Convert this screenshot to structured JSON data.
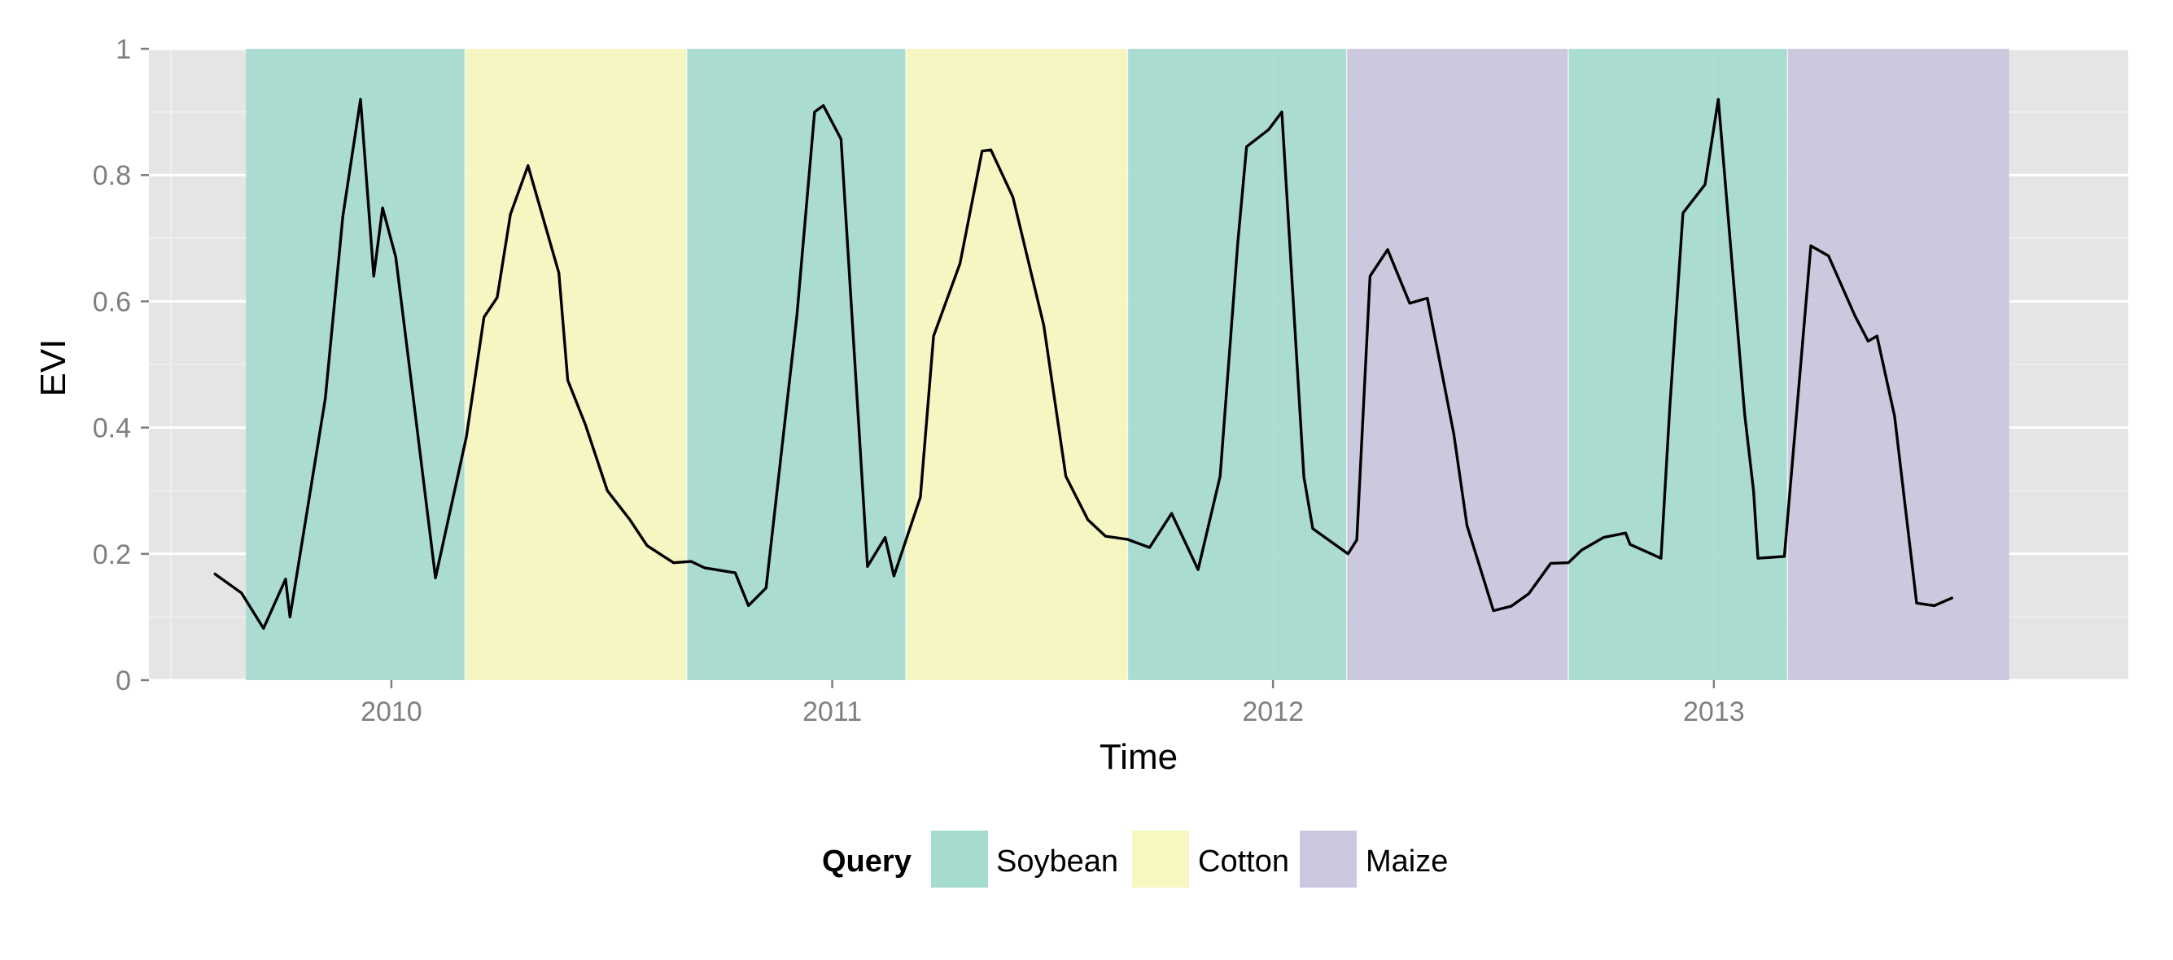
{
  "chart_data": {
    "type": "line",
    "title": "",
    "xlabel": "Time",
    "ylabel": "EVI",
    "xlim": [
      2009.45,
      2013.94
    ],
    "ylim": [
      0,
      1
    ],
    "x_ticks": [
      2010,
      2011,
      2012,
      2013
    ],
    "x_tick_labels": [
      "2010",
      "2011",
      "2012",
      "2013"
    ],
    "y_ticks": [
      0,
      0.2,
      0.4,
      0.6,
      0.8,
      1
    ],
    "y_tick_labels": [
      "0",
      "0.2",
      "0.4",
      "0.6",
      "0.8",
      "1"
    ],
    "grid": true,
    "legend": {
      "title": "Query",
      "position": "bottom",
      "entries": [
        {
          "label": "Soybean",
          "color": "#a6dbd0"
        },
        {
          "label": "Cotton",
          "color": "#f7f7c1"
        },
        {
          "label": "Maize",
          "color": "#cac7df"
        }
      ]
    },
    "shaded_regions": [
      {
        "query": "Soybean",
        "start": 2009.67,
        "end": 2010.167
      },
      {
        "query": "Cotton",
        "start": 2010.167,
        "end": 2010.67
      },
      {
        "query": "Soybean",
        "start": 2010.67,
        "end": 2011.167
      },
      {
        "query": "Cotton",
        "start": 2011.167,
        "end": 2011.67
      },
      {
        "query": "Soybean",
        "start": 2011.67,
        "end": 2012.167
      },
      {
        "query": "Maize",
        "start": 2012.167,
        "end": 2012.67
      },
      {
        "query": "Soybean",
        "start": 2012.67,
        "end": 2013.167
      },
      {
        "query": "Maize",
        "start": 2013.167,
        "end": 2013.67
      }
    ],
    "series": [
      {
        "color": "#000000",
        "points": [
          [
            2009.6,
            0.168
          ],
          [
            2009.66,
            0.138
          ],
          [
            2009.71,
            0.082
          ],
          [
            2009.76,
            0.16
          ],
          [
            2009.77,
            0.1
          ],
          [
            2009.85,
            0.446
          ],
          [
            2009.89,
            0.735
          ],
          [
            2009.93,
            0.92
          ],
          [
            2009.96,
            0.64
          ],
          [
            2009.98,
            0.748
          ],
          [
            2010.01,
            0.67
          ],
          [
            2010.05,
            0.445
          ],
          [
            2010.1,
            0.162
          ],
          [
            2010.17,
            0.385
          ],
          [
            2010.21,
            0.575
          ],
          [
            2010.24,
            0.606
          ],
          [
            2010.27,
            0.738
          ],
          [
            2010.31,
            0.815
          ],
          [
            2010.38,
            0.645
          ],
          [
            2010.4,
            0.475
          ],
          [
            2010.44,
            0.405
          ],
          [
            2010.49,
            0.3
          ],
          [
            2010.54,
            0.255
          ],
          [
            2010.58,
            0.213
          ],
          [
            2010.64,
            0.186
          ],
          [
            2010.68,
            0.188
          ],
          [
            2010.71,
            0.178
          ],
          [
            2010.78,
            0.17
          ],
          [
            2010.81,
            0.118
          ],
          [
            2010.85,
            0.146
          ],
          [
            2010.92,
            0.578
          ],
          [
            2010.96,
            0.9
          ],
          [
            2010.98,
            0.91
          ],
          [
            2011.02,
            0.857
          ],
          [
            2011.08,
            0.18
          ],
          [
            2011.12,
            0.226
          ],
          [
            2011.14,
            0.165
          ],
          [
            2011.2,
            0.29
          ],
          [
            2011.23,
            0.545
          ],
          [
            2011.29,
            0.66
          ],
          [
            2011.34,
            0.838
          ],
          [
            2011.36,
            0.84
          ],
          [
            2011.41,
            0.765
          ],
          [
            2011.48,
            0.562
          ],
          [
            2011.53,
            0.323
          ],
          [
            2011.58,
            0.254
          ],
          [
            2011.62,
            0.228
          ],
          [
            2011.67,
            0.223
          ],
          [
            2011.72,
            0.21
          ],
          [
            2011.77,
            0.264
          ],
          [
            2011.83,
            0.175
          ],
          [
            2011.88,
            0.323
          ],
          [
            2011.92,
            0.693
          ],
          [
            2011.94,
            0.845
          ],
          [
            2011.99,
            0.872
          ],
          [
            2012.02,
            0.9
          ],
          [
            2012.07,
            0.322
          ],
          [
            2012.09,
            0.24
          ],
          [
            2012.17,
            0.2
          ],
          [
            2012.19,
            0.222
          ],
          [
            2012.22,
            0.64
          ],
          [
            2012.26,
            0.682
          ],
          [
            2012.31,
            0.597
          ],
          [
            2012.35,
            0.605
          ],
          [
            2012.41,
            0.39
          ],
          [
            2012.44,
            0.245
          ],
          [
            2012.5,
            0.11
          ],
          [
            2012.54,
            0.117
          ],
          [
            2012.58,
            0.137
          ],
          [
            2012.63,
            0.185
          ],
          [
            2012.67,
            0.186
          ],
          [
            2012.7,
            0.206
          ],
          [
            2012.75,
            0.226
          ],
          [
            2012.8,
            0.233
          ],
          [
            2012.81,
            0.215
          ],
          [
            2012.88,
            0.193
          ],
          [
            2012.9,
            0.432
          ],
          [
            2012.93,
            0.74
          ],
          [
            2012.98,
            0.785
          ],
          [
            2013.01,
            0.92
          ],
          [
            2013.07,
            0.42
          ],
          [
            2013.09,
            0.3
          ],
          [
            2013.1,
            0.193
          ],
          [
            2013.16,
            0.196
          ],
          [
            2013.22,
            0.688
          ],
          [
            2013.26,
            0.672
          ],
          [
            2013.32,
            0.577
          ],
          [
            2013.35,
            0.537
          ],
          [
            2013.37,
            0.545
          ],
          [
            2013.41,
            0.418
          ],
          [
            2013.46,
            0.122
          ],
          [
            2013.5,
            0.118
          ],
          [
            2013.54,
            0.13
          ]
        ]
      }
    ]
  }
}
